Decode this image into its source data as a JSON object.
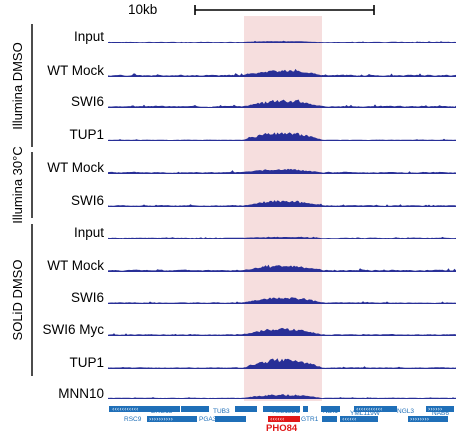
{
  "scale_bar": {
    "label": "10kb"
  },
  "colors": {
    "track": "#282f97",
    "highlight": "#f6dede",
    "gene": "#1f6fb8",
    "pho84": "#e01818"
  },
  "groups": [
    {
      "id": "illumina-dmso",
      "label": "Illumina DMSO",
      "tracks": [
        "Input",
        "WT Mock",
        "SWI6",
        "TUP1"
      ]
    },
    {
      "id": "illumina-30c",
      "label": "Illumina 30°C",
      "tracks": [
        "WT Mock",
        "SWI6"
      ]
    },
    {
      "id": "solid-dmso",
      "label": "SOLiD DMSO",
      "tracks": [
        "Input",
        "WT Mock",
        "SWI6",
        "SWI6 Myc",
        "TUP1"
      ]
    }
  ],
  "extra_track": "MNN10",
  "genes_top": [
    "ERG13",
    "TUB3",
    "YML122C",
    "NDI1",
    "NGL3"
  ],
  "genes_bottom": [
    "RSC9",
    "PGA3",
    "GTR1",
    "YML119W",
    "NAB6"
  ],
  "highlight_gene": "PHO84"
}
